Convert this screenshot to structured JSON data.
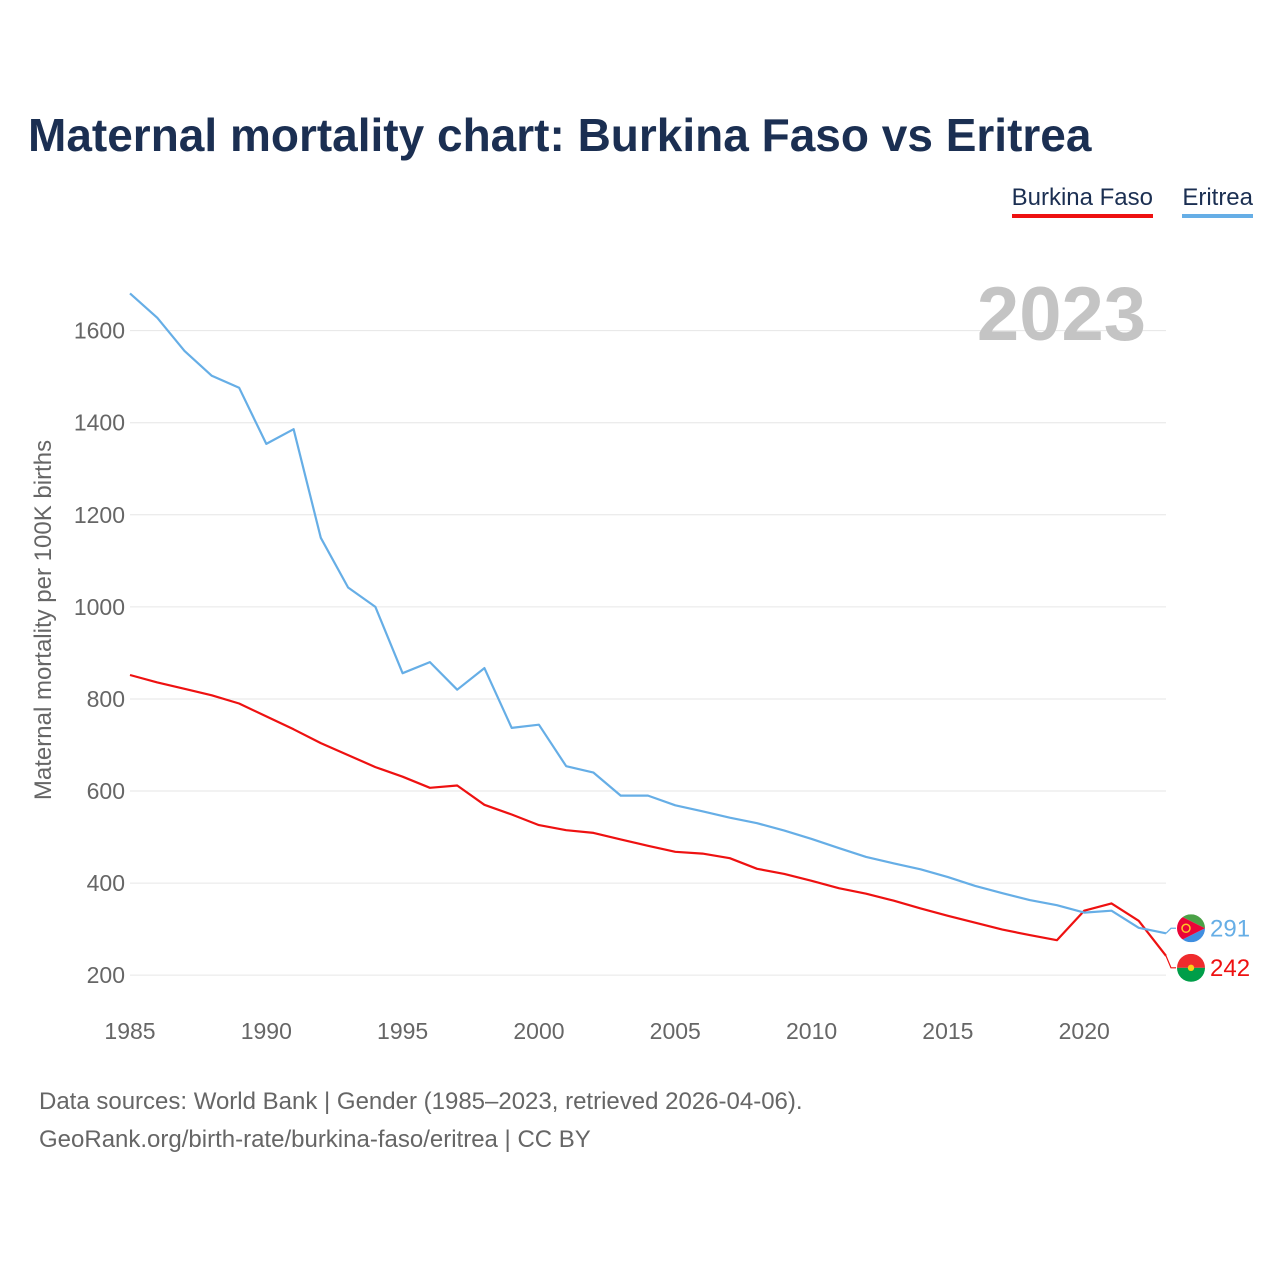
{
  "title": "Maternal mortality chart: Burkina Faso vs Eritrea",
  "legend": [
    {
      "name": "Burkina Faso",
      "color": "#ee1111"
    },
    {
      "name": "Eritrea",
      "color": "#66aee6"
    }
  ],
  "year_display": "2023",
  "footer": {
    "sources": "Data sources: World Bank | Gender (1985–2023, retrieved 2026-04-06).",
    "link": "GeoRank.org/birth-rate/burkina-faso/eritrea | CC BY"
  },
  "chart_data": {
    "type": "line",
    "title": "Maternal mortality chart: Burkina Faso vs Eritrea",
    "xlabel": "",
    "ylabel": "Maternal mortality per 100K births",
    "xlim": [
      1985,
      2023
    ],
    "ylim": [
      120,
      1710
    ],
    "x_ticks": [
      1985,
      1990,
      1995,
      2000,
      2005,
      2010,
      2015,
      2020
    ],
    "x_tick_labels": [
      "1985",
      "1990",
      "1995",
      "2000",
      "2005",
      "2010",
      "2015",
      "2020"
    ],
    "y_ticks": [
      200,
      400,
      600,
      800,
      1000,
      1200,
      1400,
      1600
    ],
    "y_tick_labels": [
      "200",
      "400",
      "600",
      "800",
      "1000",
      "1200",
      "1400",
      "1600"
    ],
    "grid": true,
    "legend_position": "top-right",
    "x": [
      1985,
      1986,
      1987,
      1988,
      1989,
      1990,
      1991,
      1992,
      1993,
      1994,
      1995,
      1996,
      1997,
      1998,
      1999,
      2000,
      2001,
      2002,
      2003,
      2004,
      2005,
      2006,
      2007,
      2008,
      2009,
      2010,
      2011,
      2012,
      2013,
      2014,
      2015,
      2016,
      2017,
      2018,
      2019,
      2020,
      2021,
      2022,
      2023
    ],
    "series": [
      {
        "name": "Burkina Faso",
        "color": "#ee1111",
        "values": [
          852,
          836,
          822,
          808,
          790,
          762,
          734,
          704,
          678,
          652,
          631,
          607,
          612,
          570,
          549,
          526,
          515,
          509,
          495,
          481,
          468,
          464,
          454,
          431,
          420,
          405,
          389,
          377,
          362,
          345,
          329,
          314,
          299,
          287,
          276,
          340,
          356,
          318,
          242
        ],
        "end_label": "242"
      },
      {
        "name": "Eritrea",
        "color": "#66aee6",
        "values": [
          1681,
          1628,
          1556,
          1502,
          1476,
          1354,
          1386,
          1150,
          1042,
          1000,
          856,
          880,
          820,
          867,
          737,
          744,
          654,
          640,
          590,
          590,
          569,
          556,
          542,
          530,
          514,
          496,
          476,
          457,
          443,
          430,
          413,
          394,
          378,
          363,
          352,
          336,
          340,
          303,
          291
        ],
        "end_label": "291"
      }
    ]
  }
}
